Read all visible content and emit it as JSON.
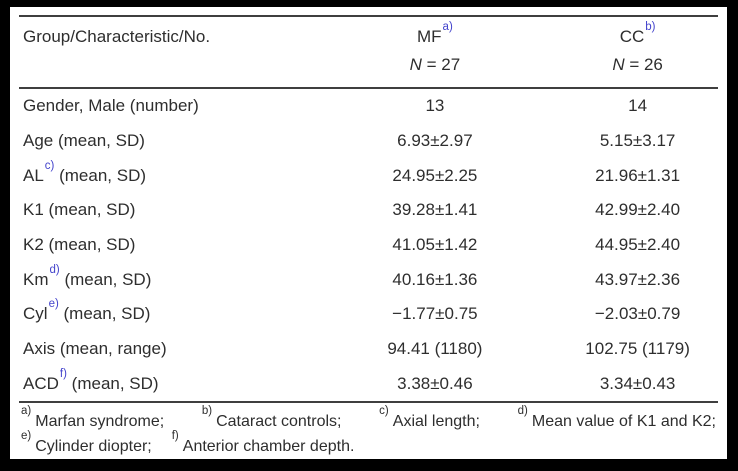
{
  "colors": {
    "accent": "#4444cc",
    "text": "#2e2e2e",
    "rule": "#3f3f3f",
    "frame": "#000000",
    "paper": "#ffffff"
  },
  "table": {
    "header": {
      "col1": "Group/Characteristic/No.",
      "mf": {
        "label": "MF",
        "sup": "a)",
        "n_sym": "N",
        "n_val": " = 27"
      },
      "cc": {
        "label": "CC",
        "sup": "b)",
        "n_sym": "N",
        "n_val": " = 26"
      }
    },
    "rows": [
      {
        "pre": "Gender, Male (number)",
        "sup": "",
        "post": "",
        "mf": "13",
        "cc": "14"
      },
      {
        "pre": "Age (mean, SD)",
        "sup": "",
        "post": "",
        "mf": "6.93±2.97",
        "cc": "5.15±3.17"
      },
      {
        "pre": "AL",
        "sup": "c)",
        "post": " (mean, SD)",
        "mf": "24.95±2.25",
        "cc": "21.96±1.31"
      },
      {
        "pre": "K1 (mean, SD)",
        "sup": "",
        "post": "",
        "mf": "39.28±1.41",
        "cc": "42.99±2.40"
      },
      {
        "pre": "K2 (mean, SD)",
        "sup": "",
        "post": "",
        "mf": "41.05±1.42",
        "cc": "44.95±2.40"
      },
      {
        "pre": "Km",
        "sup": "d)",
        "post": " (mean, SD)",
        "mf": "40.16±1.36",
        "cc": "43.97±2.36"
      },
      {
        "pre": "Cyl",
        "sup": "e)",
        "post": " (mean, SD)",
        "mf": "−1.77±0.75",
        "cc": "−2.03±0.79"
      },
      {
        "pre": "Axis (mean, range)",
        "sup": "",
        "post": "",
        "mf": "94.41 (1180)",
        "cc": "102.75 (1179)"
      },
      {
        "pre": "ACD",
        "sup": "f)",
        "post": " (mean, SD)",
        "mf": "3.38±0.46",
        "cc": "3.34±0.43"
      }
    ],
    "footnotes": {
      "line1": [
        {
          "sup": "a)",
          "text": "Marfan syndrome;"
        },
        {
          "sup": "b)",
          "text": "Cataract controls;"
        },
        {
          "sup": "c)",
          "text": "Axial length;"
        },
        {
          "sup": "d)",
          "text": "Mean value of K1 and K2;"
        }
      ],
      "line2": [
        {
          "sup": "e)",
          "text": "Cylinder diopter;"
        },
        {
          "sup": "f)",
          "text": "Anterior chamber depth."
        }
      ]
    }
  }
}
